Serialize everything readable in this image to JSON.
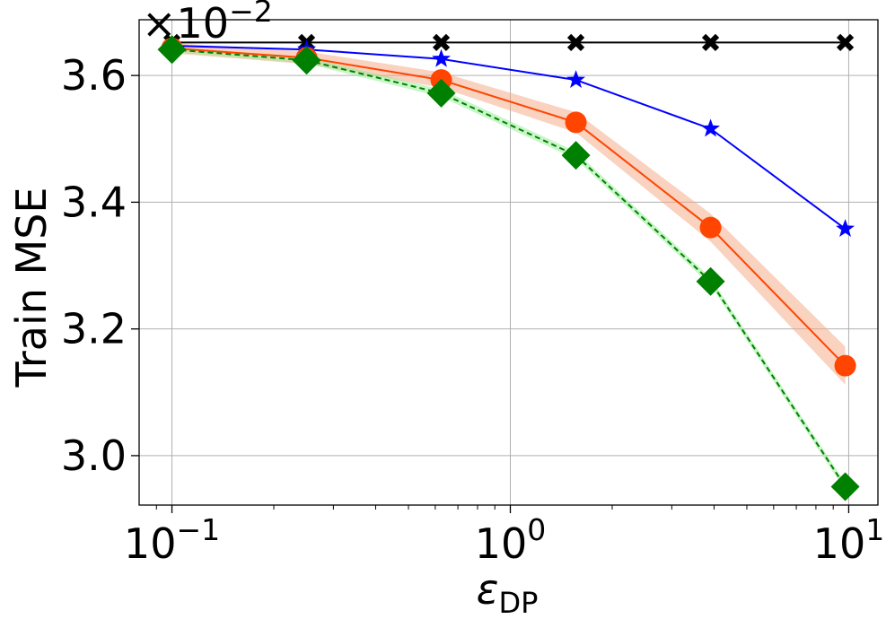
{
  "chart_data": {
    "type": "line",
    "title": "",
    "xlabel": "ε",
    "xlabel_sub": "DP",
    "ylabel": "Train MSE",
    "x_scale": "log",
    "xlim": [
      0.08,
      12.2
    ],
    "ylim": [
      0.02922,
      0.03688
    ],
    "y_multiplier": {
      "base": "×10",
      "exp": "−2"
    },
    "grid": true,
    "legend": "none",
    "x": [
      0.1,
      0.25,
      0.625,
      1.5625,
      3.90625,
      9.765625
    ],
    "x_ticks": [
      {
        "value": 0.1,
        "base": "10",
        "exp": "−1"
      },
      {
        "value": 1,
        "base": "10",
        "exp": "0"
      },
      {
        "value": 10,
        "base": "10",
        "exp": "1"
      }
    ],
    "y_ticks": [
      {
        "value": 0.03,
        "label": "3.0"
      },
      {
        "value": 0.032,
        "label": "3.2"
      },
      {
        "value": 0.034,
        "label": "3.4"
      },
      {
        "value": 0.036,
        "label": "3.6"
      }
    ],
    "series": [
      {
        "color": "#000000",
        "marker": "x",
        "dash": "none",
        "values": [
          0.03652,
          0.03652,
          0.03652,
          0.03652,
          0.03652,
          0.03652
        ]
      },
      {
        "color": "#0000ff",
        "marker": "star",
        "dash": "none",
        "values": [
          0.03647,
          0.03641,
          0.03626,
          0.03593,
          0.03516,
          0.03358
        ]
      },
      {
        "color": "#ff4500",
        "marker": "circle",
        "dash": "none",
        "band_color": "#f4a582",
        "values": [
          0.03643,
          0.03628,
          0.03593,
          0.03526,
          0.0336,
          0.03142
        ],
        "band": [
          8e-05,
          0.0001,
          0.00012,
          0.00016,
          0.00022,
          0.0003
        ]
      },
      {
        "color": "#008000",
        "marker": "diamond",
        "dash": "6,4",
        "band_color": "#90ee90",
        "values": [
          0.03641,
          0.03624,
          0.03572,
          0.03474,
          0.03275,
          0.02951
        ],
        "band": [
          4e-05,
          5e-05,
          6e-05,
          6e-05,
          6e-05,
          6e-05
        ]
      }
    ]
  }
}
